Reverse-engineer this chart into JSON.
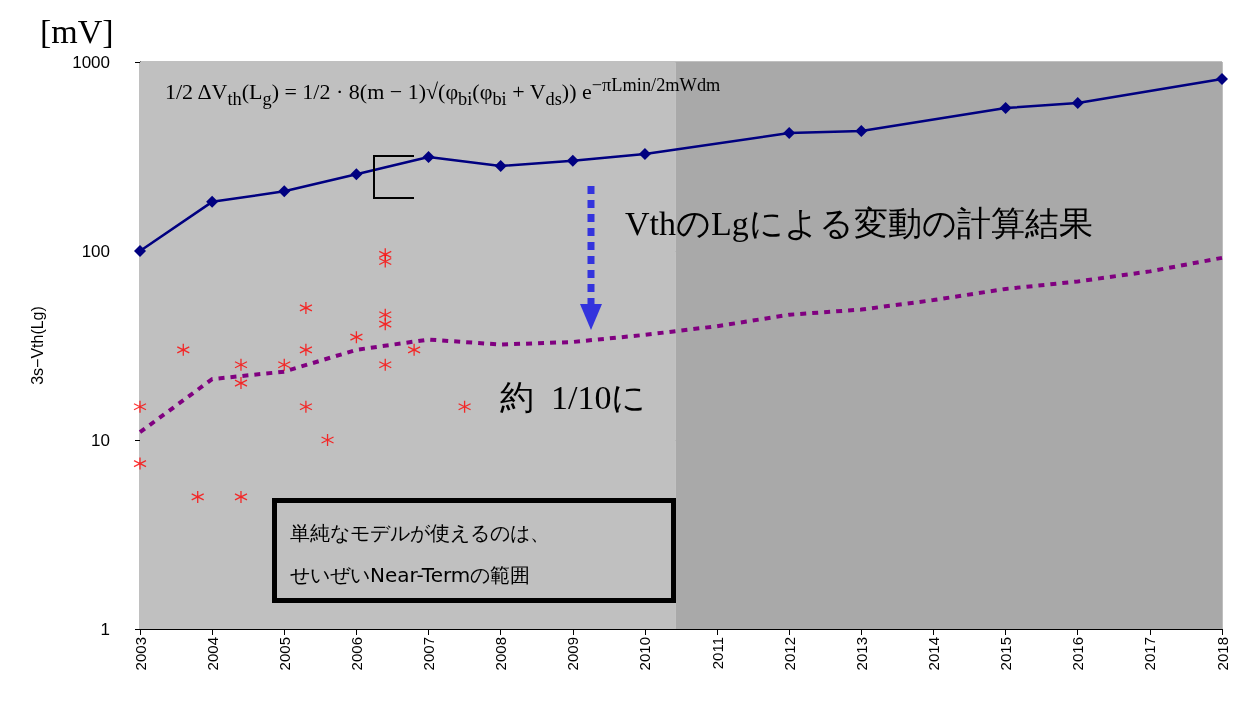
{
  "chart_data": {
    "type": "line",
    "ylabel": "3s−Vth(Lg)",
    "annotations": [
      "[mV]",
      "1/2 ΔV$_{th}$(L$_{g}$) = 1/2 · 8(m − 1)√(φ$_{bi}$(φ$_{bi}$ + V$_{ds}$)) e$^{−πLmin/2mWdm}$",
      "VthのLgによる変動の計算結果",
      "約  1/10に",
      "単純なモデルが使えるのは、",
      "せいぜいNear-Termの範囲"
    ],
    "series": [
      {
        "color": "#000080",
        "marker": "diamond",
        "line_style": "solid",
        "x": [
          2003,
          2004,
          2005,
          2006,
          2007,
          2008,
          2009,
          2010,
          2012,
          2013,
          2015,
          2016,
          2018
        ],
        "values": [
          100,
          182,
          207,
          255,
          314,
          282,
          300,
          326,
          421,
          431,
          571,
          607,
          813
        ]
      },
      {
        "color": "#800080",
        "marker": "none",
        "line_style": "dashed",
        "x": [
          2003,
          2004,
          2005,
          2006,
          2007,
          2008,
          2009,
          2010,
          2011,
          2012,
          2013,
          2014,
          2015,
          2016,
          2017,
          2018
        ],
        "values": [
          11,
          21,
          23,
          30,
          34,
          32,
          33,
          36,
          40,
          46,
          49,
          55,
          63,
          69,
          78,
          92
        ]
      },
      {
        "type": "scatter",
        "color": "#ff0000",
        "marker": "cross",
        "x": [
          2003,
          2003,
          2003.6,
          2003.8,
          2004.4,
          2004.4,
          2004.4,
          2005,
          2005.3,
          2005.3,
          2005.3,
          2005.6,
          2006,
          2006.4,
          2006.4,
          2006.4,
          2006.4,
          2006.4,
          2006.8,
          2007.5
        ],
        "values": [
          15,
          7.5,
          30,
          5,
          25,
          20,
          5,
          25,
          50,
          30,
          15,
          10,
          35,
          96,
          88,
          46,
          41,
          25,
          30,
          15
        ]
      }
    ],
    "xlim": [
      2003,
      2018
    ],
    "xticks": [
      2003,
      2004,
      2005,
      2006,
      2007,
      2008,
      2009,
      2010,
      2011,
      2012,
      2013,
      2014,
      2015,
      2016,
      2017,
      2018
    ],
    "ylim": [
      1,
      1000
    ],
    "yticks": [
      1,
      10,
      100,
      1000
    ],
    "log": "y",
    "grid": "y",
    "bands": [
      {
        "axis": "x",
        "from": 2003,
        "to": 2010.43,
        "color": "#c0c0c0"
      },
      {
        "axis": "x",
        "from": 2010.43,
        "to": 2018,
        "color": "#a9a9a9"
      }
    ]
  }
}
